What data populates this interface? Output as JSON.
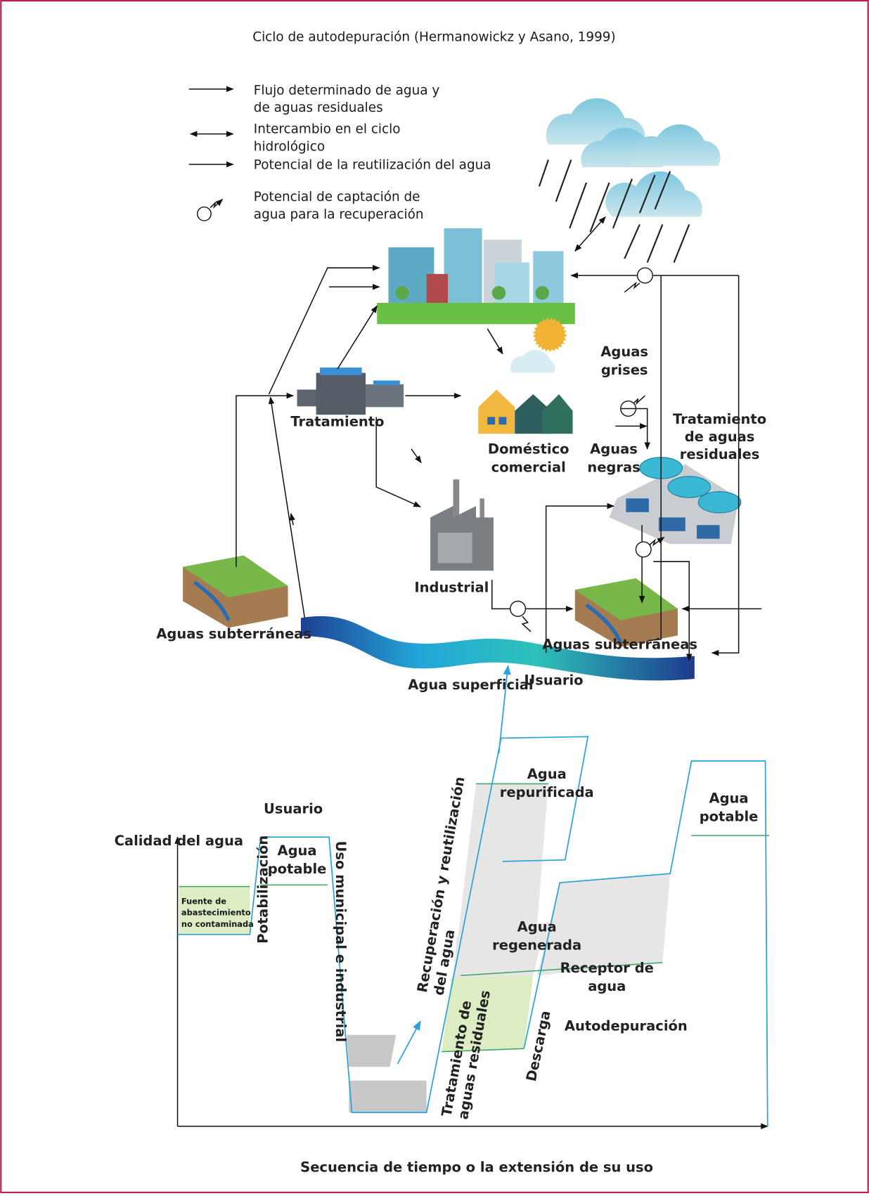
{
  "title": "Ciclo de autodepuración (Hermanowickz y Asano, 1999)",
  "legend": [
    {
      "lines": [
        "Flujo determinado de agua y",
        "de aguas residuales"
      ]
    },
    {
      "lines": [
        "Intercambio en el ciclo",
        "hidrológico"
      ]
    },
    {
      "lines": [
        "Potencial de la reutilización del agua"
      ]
    },
    {
      "lines": [
        "Potencial de captación de",
        "agua para la recuperación"
      ]
    }
  ],
  "cycle": {
    "aguas_grises": [
      "Aguas",
      "grises"
    ],
    "tratamiento": "Tratamiento",
    "domestico": [
      "Doméstico",
      "comercial"
    ],
    "tratamiento_residuales": [
      "Tratamiento",
      "de aguas",
      "residuales"
    ],
    "aguas_negras": [
      "Aguas",
      "negras"
    ],
    "industrial": "Industrial",
    "subterraneas_izq": "Aguas subterráneas",
    "subterraneas_der": "Aguas subterráneas",
    "superficial": "Agua superficial"
  },
  "quality_chart": {
    "y_label": "Calidad del agua",
    "x_label": "Secuencia de tiempo o la extensión de su uso",
    "usuario_1": "Usuario",
    "agua_potable_1": [
      "Agua",
      "potable"
    ],
    "fuente": [
      "Fuente de",
      "abastecimiento",
      "no contaminada"
    ],
    "potabilizacion": "Potabilización",
    "uso": "Uso municipal e industrial",
    "recuperacion": [
      "Recuperación y reutilización",
      "del agua"
    ],
    "usuario_2": "Usuario",
    "repurificada": [
      "Agua",
      "repurificada"
    ],
    "regenerada": [
      "Agua",
      "regenerada"
    ],
    "receptor": [
      "Receptor de",
      "agua"
    ],
    "autodepuracion": "Autodepuración",
    "tratamiento": [
      "Tratamiento de",
      "aguas residuales"
    ],
    "descarga": "Descarga",
    "agua_potable_2": [
      "Agua",
      "potable"
    ]
  }
}
